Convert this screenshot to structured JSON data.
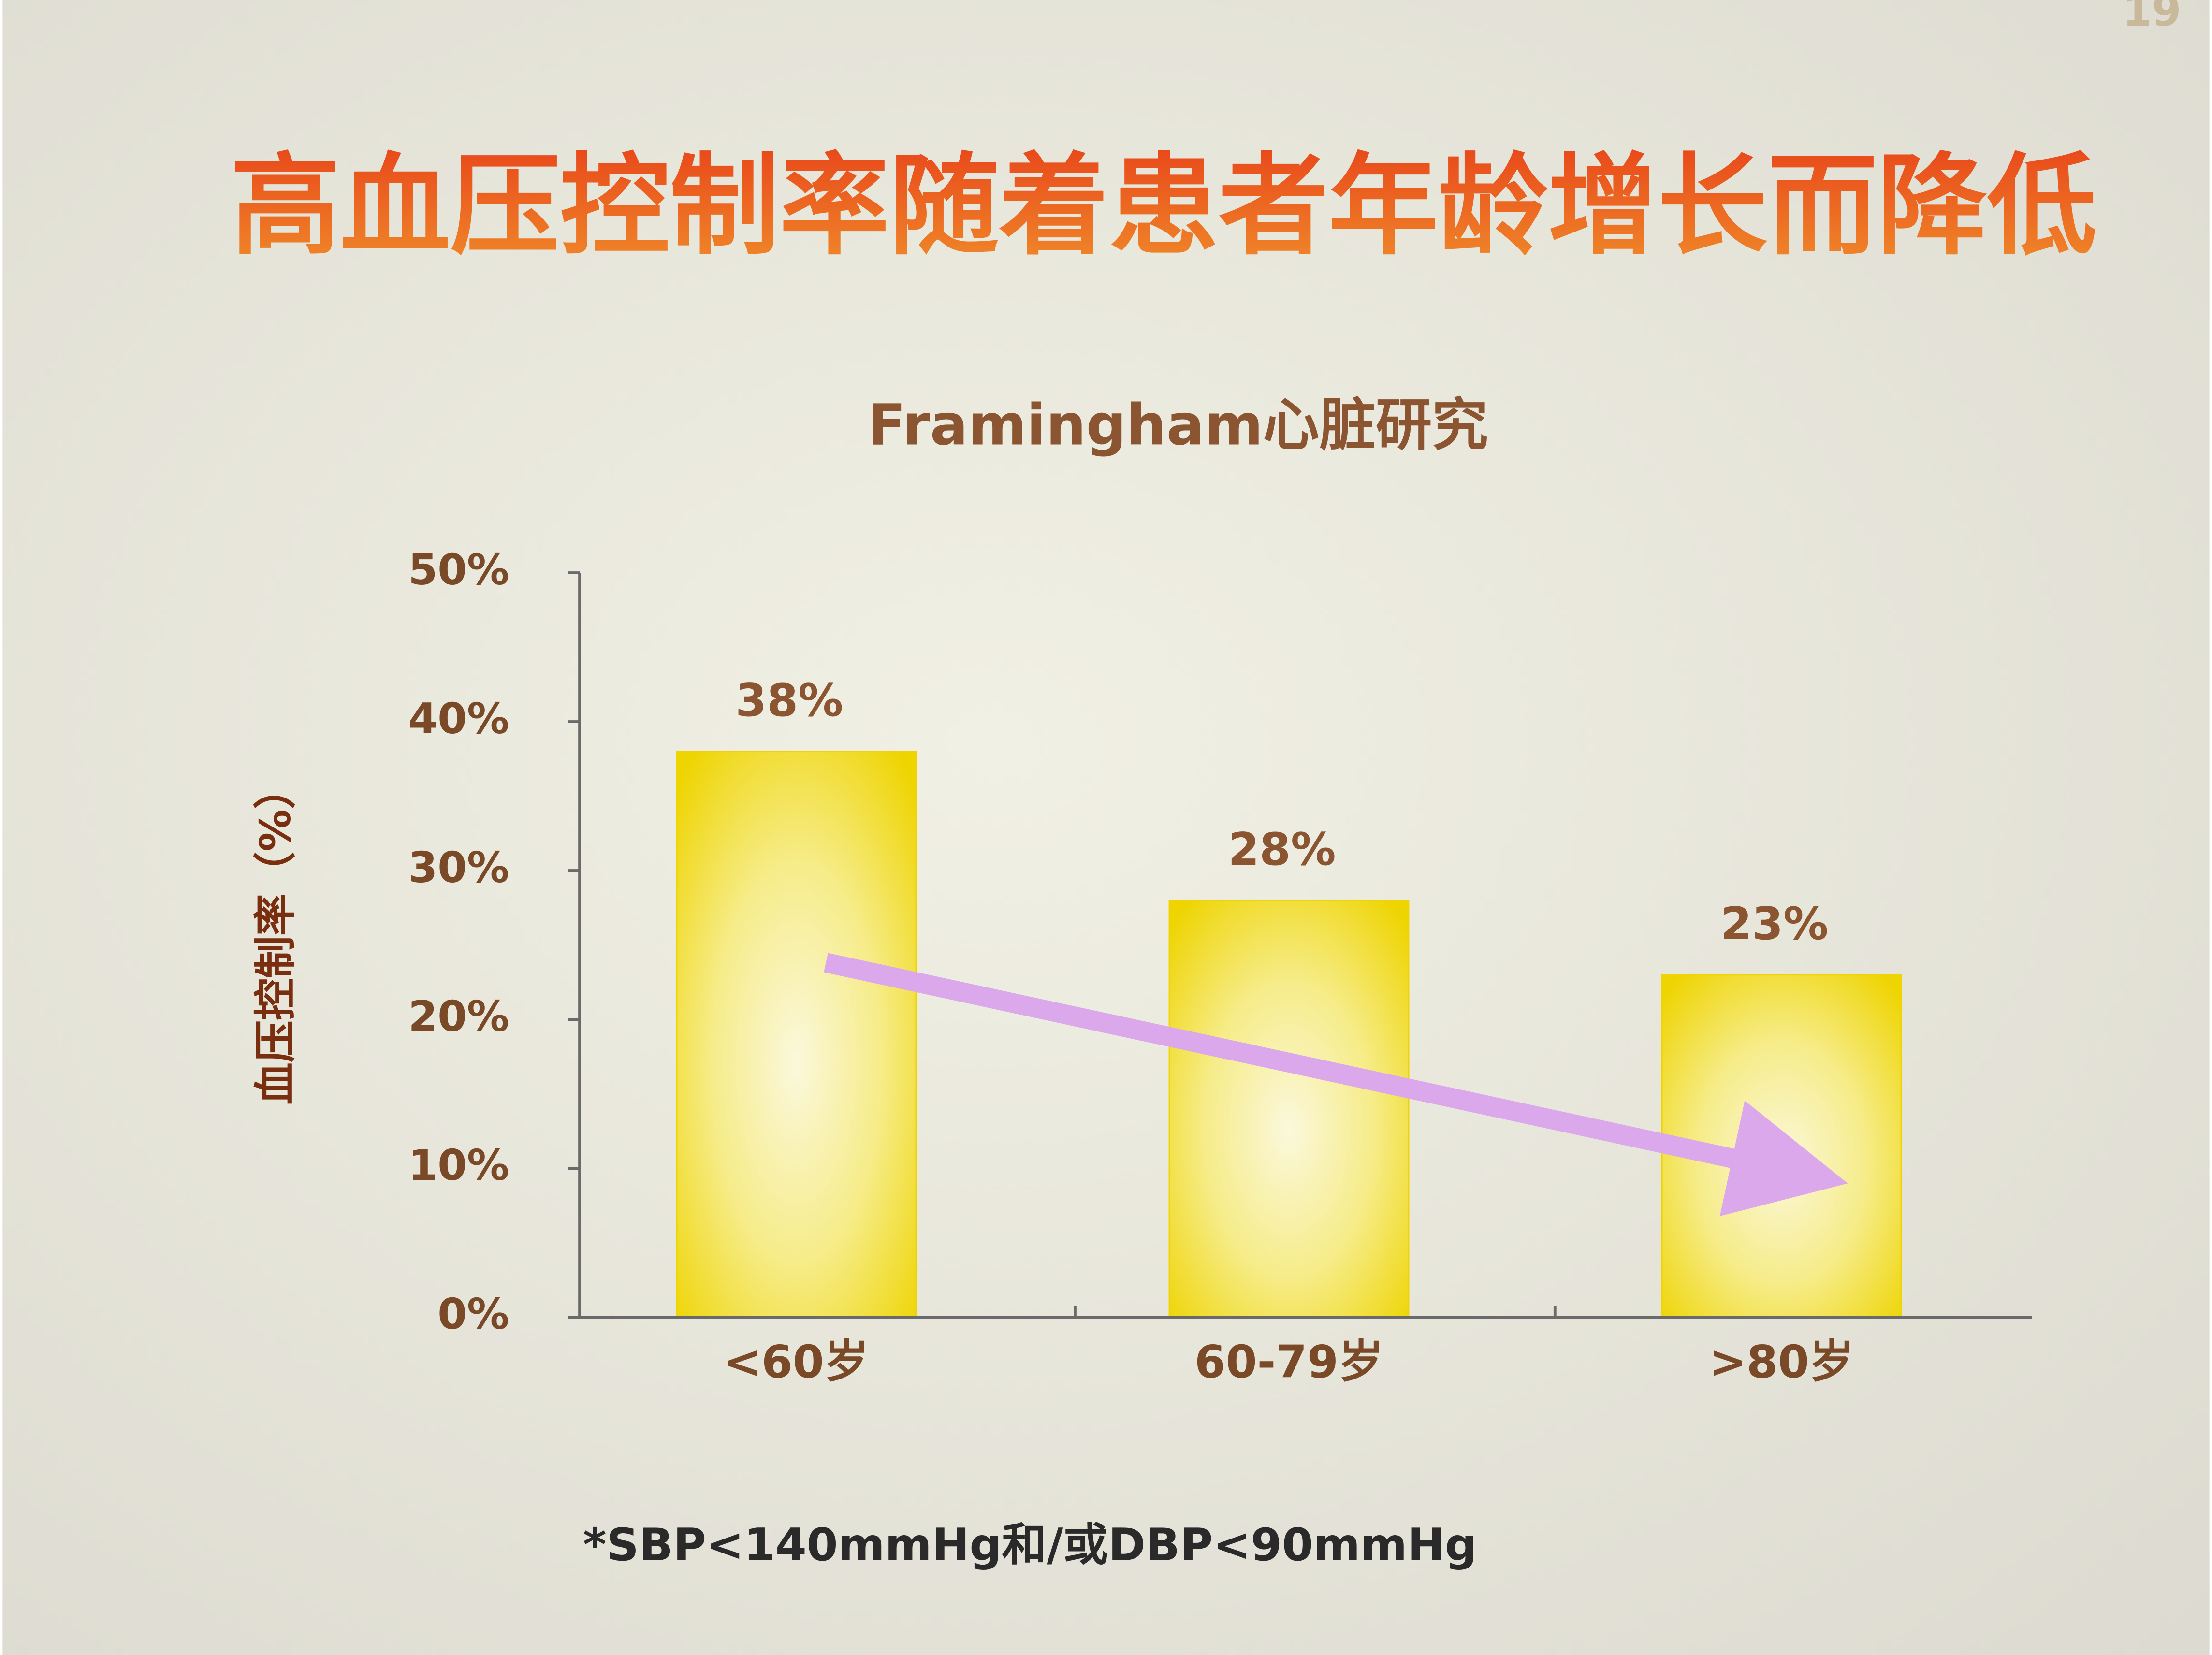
{
  "chart_data": {
    "type": "bar",
    "title": "高血压控制率随着患者年龄增长而降低",
    "subtitle": "Framingham心脏研究",
    "ylabel": "血压控制率（%）",
    "categories": [
      "<60岁",
      "60-79岁",
      ">80岁"
    ],
    "values": [
      38,
      28,
      23
    ],
    "value_labels": [
      "38%",
      "28%",
      "23%"
    ],
    "ylim": [
      0,
      50
    ],
    "yticks": [
      {
        "value": 0,
        "label": "0%"
      },
      {
        "value": 10,
        "label": "10%"
      },
      {
        "value": 20,
        "label": "20%"
      },
      {
        "value": 30,
        "label": "30%"
      },
      {
        "value": 40,
        "label": "40%"
      },
      {
        "value": 50,
        "label": "50%"
      }
    ],
    "footnote": "*SBP<140mmHg和/或DBP<90mmHg",
    "page_number": "19",
    "color": "#f0d400"
  }
}
